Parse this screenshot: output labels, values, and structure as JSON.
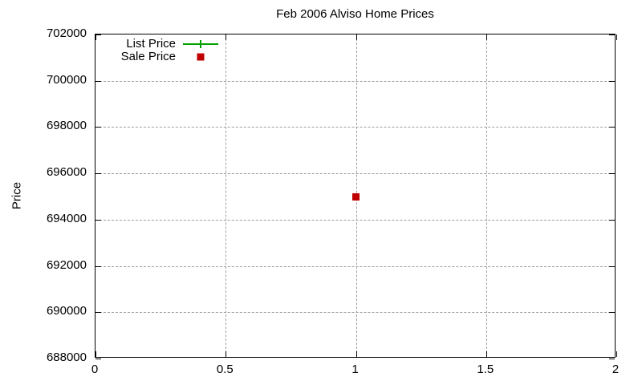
{
  "chart_data": {
    "type": "scatter",
    "title": "Feb 2006 Alviso Home Prices",
    "xlabel": "",
    "ylabel": "Price",
    "xlim": [
      0,
      2
    ],
    "ylim": [
      688000,
      702000
    ],
    "x_ticks": [
      0,
      0.5,
      1,
      1.5,
      2
    ],
    "y_ticks": [
      688000,
      690000,
      692000,
      694000,
      696000,
      698000,
      700000,
      702000
    ],
    "grid": true,
    "gridline_color": "#9e9e9e",
    "legend_position": "top-left-inside",
    "series": [
      {
        "name": "List Price",
        "color": "#00a000",
        "marker": "plus",
        "style": "linespoints",
        "points": []
      },
      {
        "name": "Sale Price",
        "color": "#c00000",
        "marker": "square",
        "style": "points",
        "points": [
          {
            "x": 1,
            "y": 695000
          }
        ]
      }
    ]
  }
}
